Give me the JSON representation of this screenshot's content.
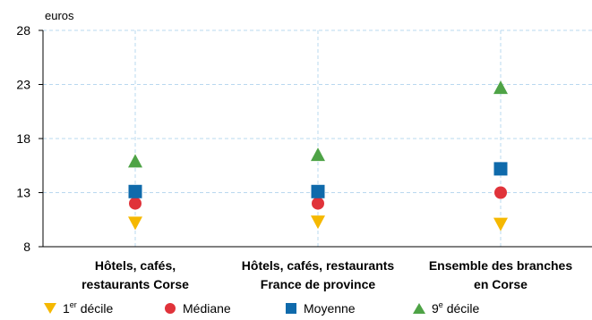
{
  "chart_data": {
    "type": "scatter",
    "ylabel": "euros",
    "ylim": [
      8,
      28
    ],
    "yticks": [
      8,
      13,
      18,
      23,
      28
    ],
    "grid": true,
    "legend_position": "bottom",
    "categories": [
      [
        "Hôtels, cafés,",
        "restaurants Corse"
      ],
      [
        "Hôtels, cafés, restaurants",
        "France de province"
      ],
      [
        "Ensemble des branches",
        "en Corse"
      ]
    ],
    "series": [
      {
        "name": "1er décile",
        "label_main": "1",
        "label_sup": "er",
        "label_rest": " décile",
        "marker": "triangle-down",
        "color": "#f5b800",
        "values": [
          10.2,
          10.3,
          10.1
        ]
      },
      {
        "name": "Médiane",
        "label_main": "Médiane",
        "label_sup": "",
        "label_rest": "",
        "marker": "circle",
        "color": "#e0333a",
        "values": [
          12.0,
          12.0,
          13.0
        ]
      },
      {
        "name": "Moyenne",
        "label_main": "Moyenne",
        "label_sup": "",
        "label_rest": "",
        "marker": "square",
        "color": "#0f6aab",
        "values": [
          13.1,
          13.1,
          15.2
        ]
      },
      {
        "name": "9e décile",
        "label_main": "9",
        "label_sup": "e",
        "label_rest": " décile",
        "marker": "triangle-up",
        "color": "#4ea346",
        "values": [
          15.9,
          16.5,
          22.7
        ]
      }
    ]
  }
}
